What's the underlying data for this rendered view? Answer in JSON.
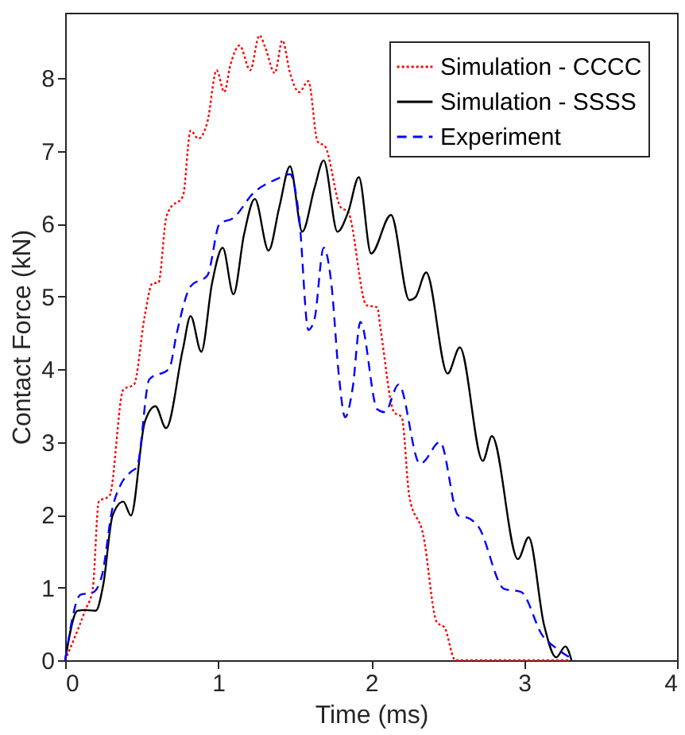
{
  "chart_data": {
    "type": "line",
    "xlabel": "Time (ms)",
    "ylabel": "Contact Force (kN)",
    "xlim": [
      0,
      4
    ],
    "xticks": [
      0,
      1,
      2,
      3,
      4
    ],
    "ylim": [
      0,
      8.9
    ],
    "yticks": [
      0,
      1,
      2,
      3,
      4,
      5,
      6,
      7,
      8
    ],
    "grid": false,
    "legend": "top right",
    "series": [
      {
        "name": "Simulation - CCCC",
        "color": "#ff0000",
        "line_style": "dotted",
        "x": [
          0,
          0.13,
          0.18,
          0.22,
          0.29,
          0.38,
          0.45,
          0.52,
          0.57,
          0.61,
          0.66,
          0.68,
          0.77,
          0.82,
          0.87,
          0.93,
          0.99,
          1.04,
          1.08,
          1.14,
          1.21,
          1.27,
          1.31,
          1.37,
          1.42,
          1.47,
          1.53,
          1.59,
          1.65,
          1.7,
          1.8,
          1.85,
          1.97,
          2.04,
          2.06,
          2.15,
          2.2,
          2.25,
          2.34,
          2.43,
          2.48,
          2.55,
          3.3
        ],
        "values": [
          0,
          0.68,
          0.98,
          2.18,
          2.26,
          3.72,
          3.79,
          4.73,
          5.18,
          5.19,
          6.08,
          6.19,
          6.38,
          7.28,
          7.17,
          7.4,
          8.11,
          7.81,
          8.18,
          8.45,
          8.11,
          8.59,
          8.41,
          8.07,
          8.52,
          8.07,
          7.81,
          7.96,
          7.13,
          7.06,
          6.23,
          6.16,
          4.88,
          4.85,
          4.58,
          3.41,
          3.34,
          2.25,
          1.73,
          0.52,
          0.45,
          0,
          0
        ]
      },
      {
        "name": "Simulation - SSSS",
        "color": "#000000",
        "line_style": "solid",
        "x": [
          0,
          0.08,
          0.13,
          0.2,
          0.25,
          0.31,
          0.38,
          0.43,
          0.52,
          0.59,
          0.66,
          0.77,
          0.82,
          0.89,
          0.96,
          1.03,
          1.1,
          1.17,
          1.24,
          1.33,
          1.4,
          1.47,
          1.55,
          1.63,
          1.69,
          1.78,
          1.85,
          1.92,
          2.0,
          2.13,
          2.25,
          2.29,
          2.36,
          2.5,
          2.58,
          2.73,
          2.79,
          2.96,
          3.03,
          3.13,
          3.21,
          3.27,
          3.31
        ],
        "values": [
          0,
          0.68,
          0.69,
          0.68,
          1.05,
          1.99,
          2.18,
          1.99,
          3.27,
          3.49,
          3.19,
          4.28,
          4.73,
          4.24,
          5.18,
          5.67,
          5.03,
          5.86,
          6.34,
          5.63,
          6.23,
          6.79,
          5.89,
          6.49,
          6.87,
          5.89,
          6.16,
          6.64,
          5.59,
          6.12,
          4.95,
          4.99,
          5.33,
          3.94,
          4.3,
          2.74,
          3.08,
          1.39,
          1.69,
          0.49,
          0.04,
          0.19,
          0
        ]
      },
      {
        "name": "Experiment",
        "color": "#0000ff",
        "line_style": "dashed",
        "x": [
          0,
          0.1,
          0.18,
          0.24,
          0.31,
          0.36,
          0.43,
          0.47,
          0.55,
          0.68,
          0.73,
          0.82,
          0.93,
          1.01,
          1.1,
          1.23,
          1.38,
          1.47,
          1.53,
          1.59,
          1.63,
          1.69,
          1.74,
          1.79,
          1.83,
          1.88,
          1.93,
          2.04,
          2.09,
          2.18,
          2.32,
          2.34,
          2.45,
          2.57,
          2.64,
          2.7,
          2.87,
          2.98,
          3.12,
          3.22,
          3.33
        ],
        "values": [
          0,
          0.9,
          0.93,
          1.16,
          2.1,
          2.4,
          2.59,
          2.66,
          3.86,
          4.01,
          4.5,
          5.14,
          5.29,
          6.0,
          6.08,
          6.42,
          6.61,
          6.68,
          6.08,
          4.54,
          4.69,
          5.67,
          5.18,
          3.9,
          3.34,
          3.75,
          4.65,
          3.45,
          3.41,
          3.79,
          2.7,
          2.72,
          3.0,
          1.99,
          1.95,
          1.84,
          0.98,
          0.94,
          0.34,
          0.15,
          0
        ]
      }
    ]
  }
}
